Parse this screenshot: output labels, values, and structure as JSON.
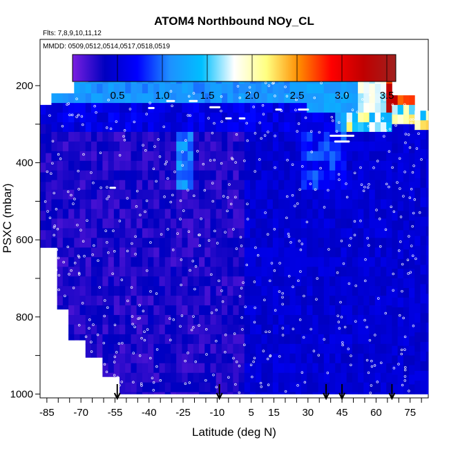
{
  "chart_data": {
    "type": "heatmap",
    "title": "ATOM4 Northbound NOy_CL",
    "flights_label": "Flts: 7,8,9,10,11,12",
    "dates_label": "MMDD: 0509,0512,0514,0517,0518,0519",
    "xlabel": "Latitude (deg N)",
    "ylabel": "PSXC (mbar)",
    "xlim": [
      -88,
      83
    ],
    "ylim": [
      1010,
      80
    ],
    "y_reversed": true,
    "x_ticks": [
      -85,
      -80,
      -75,
      -70,
      -65,
      -60,
      -55,
      -50,
      -45,
      -40,
      -35,
      -30,
      -25,
      -20,
      -15,
      -10,
      -5,
      0,
      5,
      10,
      15,
      20,
      25,
      30,
      35,
      40,
      45,
      50,
      55,
      60,
      65,
      70,
      75,
      80
    ],
    "x_tick_labels": [
      "-85",
      "-70",
      "-55",
      "-40",
      "-25",
      "-10",
      "5",
      "15",
      "30",
      "45",
      "60",
      "75"
    ],
    "x_tick_label_values": [
      -85,
      -70,
      -55,
      -40,
      -25,
      -10,
      5,
      15,
      30,
      45,
      60,
      75
    ],
    "y_ticks": [
      200,
      300,
      400,
      500,
      600,
      700,
      800,
      900,
      1000
    ],
    "y_tick_labels": [
      "200",
      "400",
      "600",
      "800",
      "1000"
    ],
    "y_tick_label_values": [
      200,
      400,
      600,
      800,
      1000
    ],
    "colorbar": {
      "min": 0.0,
      "max": 3.6,
      "ticks": [
        0.5,
        1.0,
        1.5,
        2.0,
        2.5,
        3.0,
        3.5
      ],
      "tick_labels": [
        "0.5",
        "1.0",
        "1.5",
        "2.0",
        "2.5",
        "3.0",
        "3.5"
      ],
      "colors": [
        "#7a1fe0",
        "#0000c0",
        "#0000ff",
        "#1e90ff",
        "#00bfff",
        "#ffffff",
        "#ffff80",
        "#ff8c00",
        "#ff0000",
        "#c00000",
        "#a0201e"
      ]
    },
    "profile_latitudes": [
      -54,
      -9,
      38,
      45,
      67
    ],
    "profile_marker": "arrow-down-icon",
    "grid": false,
    "legend": "none"
  }
}
